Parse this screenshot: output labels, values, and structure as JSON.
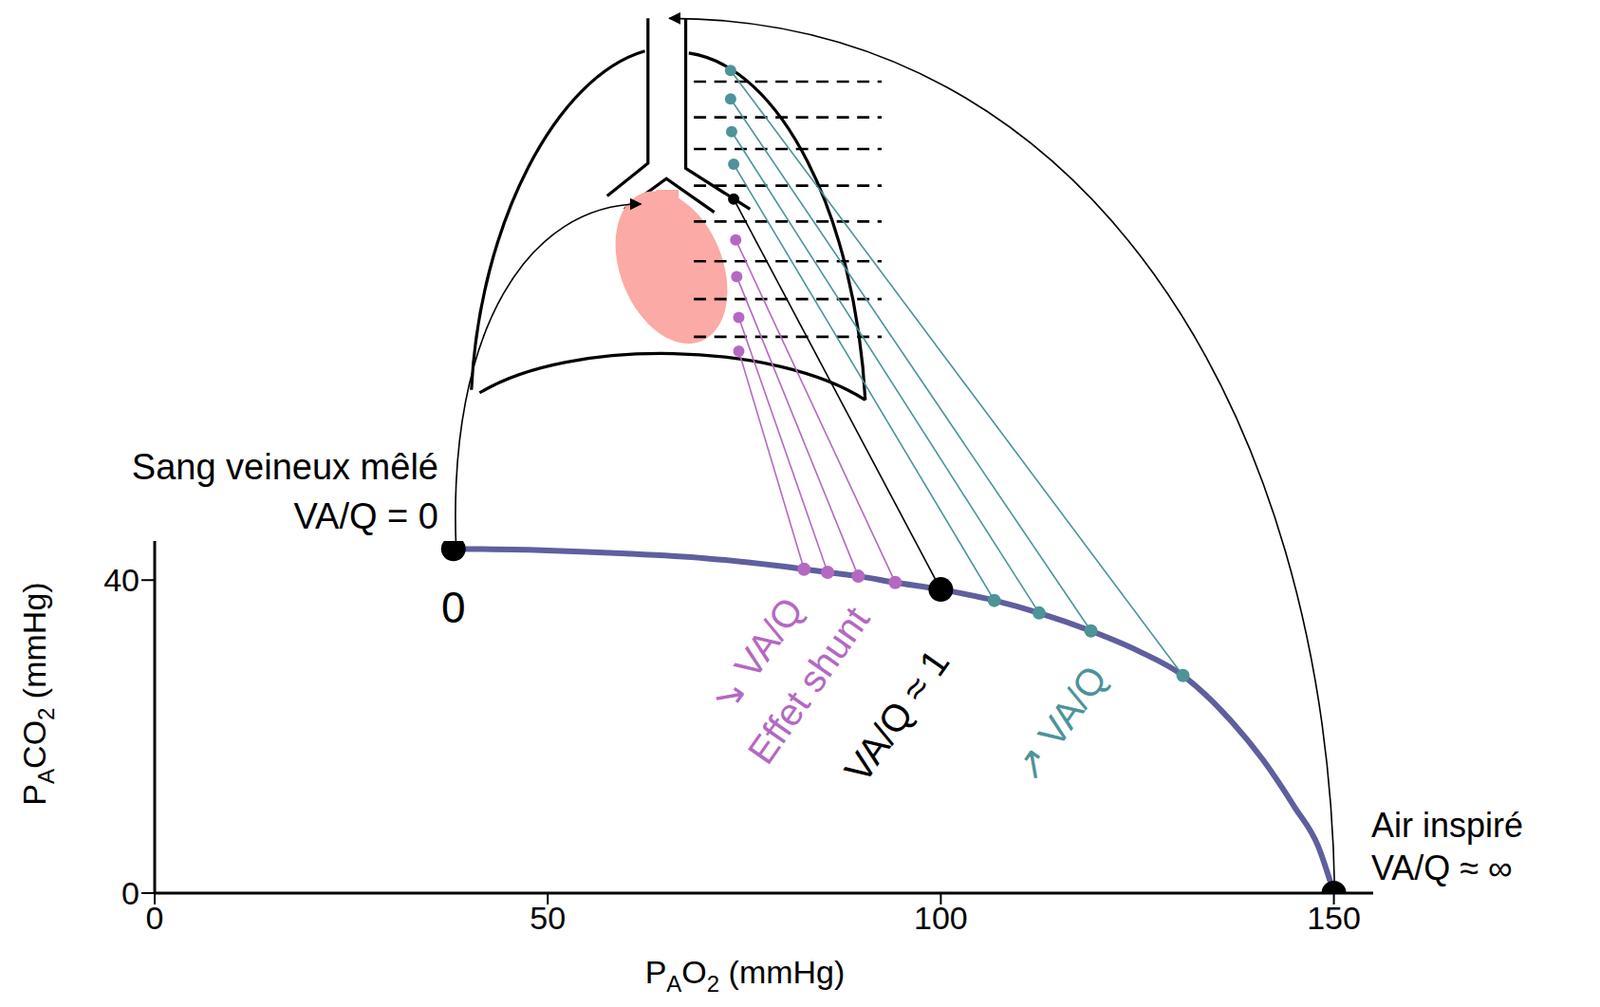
{
  "chart_data": {
    "type": "line",
    "x_label": [
      {
        "text": "P"
      },
      {
        "text": "A",
        "sub": true
      },
      {
        "text": "O"
      },
      {
        "text": "2",
        "sub": true
      },
      {
        "text": " (mmHg)"
      }
    ],
    "y_label": [
      {
        "text": "P"
      },
      {
        "text": "A",
        "sub": true
      },
      {
        "text": "CO"
      },
      {
        "text": "2",
        "sub": true
      },
      {
        "text": " (mmHg)"
      }
    ],
    "xlim": [
      0,
      155
    ],
    "xticks": [
      0,
      50,
      100,
      150
    ],
    "ylim": [
      0,
      45
    ],
    "yticks": [
      0,
      40
    ],
    "color": "#5f5f9e",
    "x": [
      38,
      50,
      60,
      70,
      82.6,
      85.6,
      89.5,
      94.2,
      100,
      106.8,
      112.5,
      119.1,
      125,
      130.8,
      136,
      141,
      145,
      148,
      150
    ],
    "values": [
      44,
      43.8,
      43.4,
      42.8,
      41.4,
      41,
      40.5,
      39.7,
      38.8,
      37.4,
      35.8,
      33.5,
      31,
      27.8,
      23,
      17,
      11,
      6,
      0
    ],
    "points": [
      {
        "x": [
          38
        ],
        "y": [
          44
        ],
        "color": "#000000",
        "marker": "big",
        "labels": [
          "Sang veineux mêlé",
          "VA/Q = 0",
          "0"
        ]
      },
      {
        "x": [
          82.6,
          85.6,
          89.5,
          94.2
        ],
        "y": [
          41.4,
          41,
          40.5,
          39.7
        ],
        "color": "#b468c2",
        "marker": "dot",
        "labels": [
          "↘ VA/Q",
          "Effet shunt"
        ]
      },
      {
        "x": [
          100
        ],
        "y": [
          38.8
        ],
        "color": "#000000",
        "marker": "big",
        "labels": [
          "VA/Q ≈ 1"
        ]
      },
      {
        "x": [
          106.8,
          112.5,
          119.1,
          130.8
        ],
        "y": [
          37.4,
          35.8,
          33.5,
          27.8
        ],
        "color": "#4d9399",
        "marker": "dot",
        "labels": [
          "↗ VA/Q"
        ]
      },
      {
        "x": [
          150
        ],
        "y": [
          0
        ],
        "color": "#000000",
        "marker": "big",
        "labels": [
          "Air inspiré",
          "VA/Q ≈ ∞"
        ]
      }
    ]
  }
}
